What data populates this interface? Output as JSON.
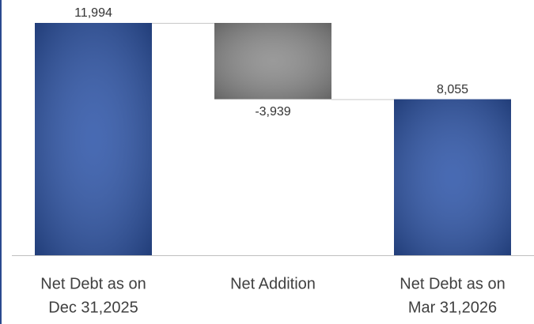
{
  "chart_data": {
    "type": "waterfall",
    "categories": [
      [
        "Net Debt as on",
        "Dec 31,2025"
      ],
      [
        "Net Addition"
      ],
      [
        "Net Debt as on",
        "Mar 31,2026"
      ]
    ],
    "values": [
      11994,
      -3939,
      8055
    ],
    "value_labels": [
      "11,994",
      "-3,939",
      "8,055"
    ],
    "measure": [
      "absolute",
      "relative",
      "absolute"
    ],
    "colors": [
      "#2f56a9",
      "#8c8c8c",
      "#2f56a9"
    ],
    "connectors": true
  }
}
